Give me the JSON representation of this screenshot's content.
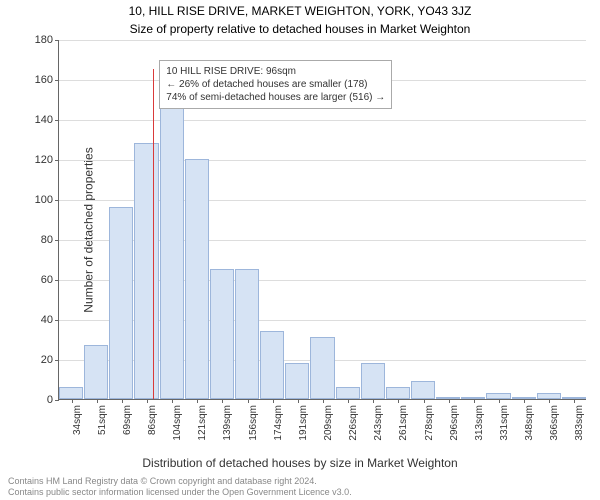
{
  "title_line1": "10, HILL RISE DRIVE, MARKET WEIGHTON, YORK, YO43 3JZ",
  "title_line2": "Size of property relative to detached houses in Market Weighton",
  "y_axis_label": "Number of detached properties",
  "x_axis_label": "Distribution of detached houses by size in Market Weighton",
  "footer_line1": "Contains HM Land Registry data © Crown copyright and database right 2024.",
  "footer_line2": "Contains public sector information licensed under the Open Government Licence v3.0.",
  "chart": {
    "type": "histogram",
    "background_color": "#ffffff",
    "grid_color": "#dddddd",
    "axis_color": "#666666",
    "bar_fill": "#d6e3f4",
    "bar_stroke": "#9db6db",
    "marker_color": "#d93a3a",
    "ylim_max": 180,
    "ytick_step": 20,
    "yticks": [
      0,
      20,
      40,
      60,
      80,
      100,
      120,
      140,
      160,
      180
    ],
    "xtick_labels": [
      "34sqm",
      "51sqm",
      "69sqm",
      "86sqm",
      "104sqm",
      "121sqm",
      "139sqm",
      "156sqm",
      "174sqm",
      "191sqm",
      "209sqm",
      "226sqm",
      "243sqm",
      "261sqm",
      "278sqm",
      "296sqm",
      "313sqm",
      "331sqm",
      "348sqm",
      "366sqm",
      "383sqm"
    ],
    "values": [
      6,
      27,
      96,
      128,
      158,
      120,
      65,
      65,
      34,
      18,
      31,
      6,
      18,
      6,
      9,
      0,
      0,
      3,
      0,
      3,
      0
    ],
    "marker_bin_index": 3,
    "annotation": {
      "line1": "10 HILL RISE DRIVE: 96sqm",
      "line2": "← 26% of detached houses are smaller (178)",
      "line3": "74% of semi-detached houses are larger (516) →"
    },
    "title_fontsize": 12,
    "label_fontsize": 12,
    "tick_fontsize": 11,
    "anno_fontsize": 10
  }
}
